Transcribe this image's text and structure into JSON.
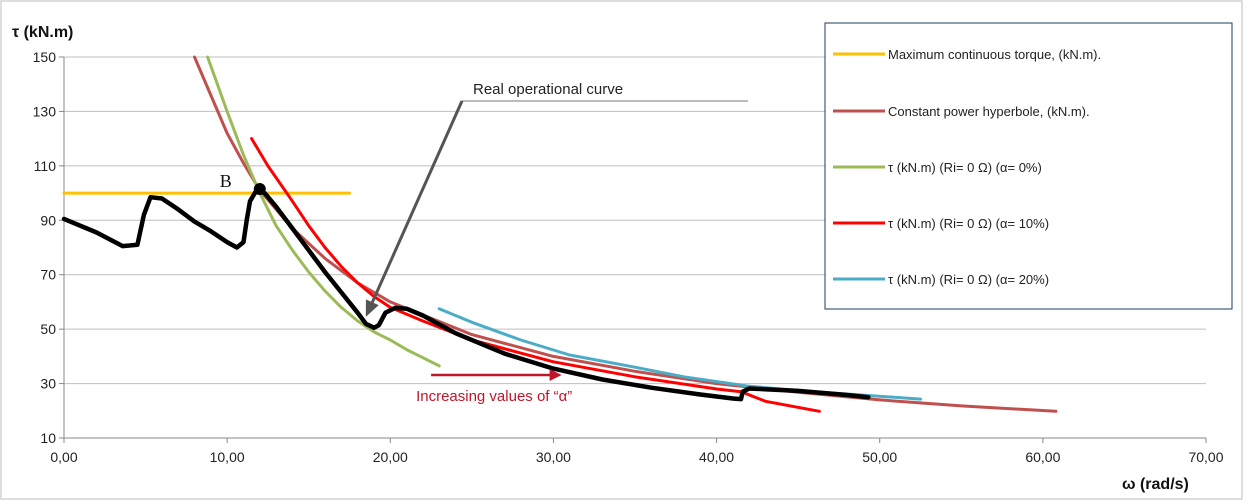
{
  "chart_data": {
    "type": "line",
    "ylabel": "τ (kN.m)",
    "xlabel": "ω (rad/s)",
    "xlim": [
      0,
      70
    ],
    "ylim": [
      10,
      150
    ],
    "x_ticks": [
      "0,00",
      "10,00",
      "20,00",
      "30,00",
      "40,00",
      "50,00",
      "60,00",
      "70,00"
    ],
    "y_ticks": [
      "10",
      "30",
      "50",
      "70",
      "90",
      "110",
      "130",
      "150"
    ],
    "grid": "horizontal",
    "legend_position": "right",
    "series": [
      {
        "name": "Maximum continuous torque, (kN.m).",
        "color": "#ffc000",
        "points": [
          [
            0,
            100
          ],
          [
            17.5,
            100
          ]
        ]
      },
      {
        "name": "Constant power hyperbole, (kN.m).",
        "color": "#c0504d",
        "points": [
          [
            8.0,
            150
          ],
          [
            9,
            136
          ],
          [
            10,
            122
          ],
          [
            11,
            111
          ],
          [
            12,
            101
          ],
          [
            14,
            87
          ],
          [
            16,
            76
          ],
          [
            18,
            67
          ],
          [
            20,
            60
          ],
          [
            25,
            48
          ],
          [
            30,
            40
          ],
          [
            35,
            34.5
          ],
          [
            40,
            30
          ],
          [
            45,
            26.8
          ],
          [
            50,
            24
          ],
          [
            55,
            21.8
          ],
          [
            60.8,
            19.8
          ]
        ]
      },
      {
        "name": "τ (kN.m)  (Ri=  0 Ω)  (α= 0%)",
        "color": "#9bbb59",
        "points": [
          [
            8.8,
            150
          ],
          [
            10,
            130
          ],
          [
            11,
            114
          ],
          [
            12,
            100
          ],
          [
            13,
            88
          ],
          [
            14,
            79
          ],
          [
            15,
            71
          ],
          [
            16,
            64
          ],
          [
            17,
            58
          ],
          [
            18,
            53
          ],
          [
            19,
            49
          ],
          [
            20,
            46
          ],
          [
            21,
            42.5
          ],
          [
            22,
            39.5
          ],
          [
            23,
            36.5
          ]
        ]
      },
      {
        "name": "τ (kN.m)  (Ri=  0 Ω) (α= 10%)",
        "color": "#ff0000",
        "points": [
          [
            11.5,
            120
          ],
          [
            12.5,
            110
          ],
          [
            14,
            97
          ],
          [
            15,
            88
          ],
          [
            16,
            80
          ],
          [
            17,
            73
          ],
          [
            18,
            67
          ],
          [
            19,
            62
          ],
          [
            20,
            58
          ],
          [
            22,
            53
          ],
          [
            25,
            46
          ],
          [
            30,
            38
          ],
          [
            35,
            32.5
          ],
          [
            40,
            28
          ],
          [
            41.5,
            27
          ],
          [
            43,
            23.5
          ],
          [
            46.3,
            19.8
          ]
        ]
      },
      {
        "name": "τ (kN.m)  (Ri=  0 Ω) (α= 20%)",
        "color": "#4bacc6",
        "points": [
          [
            23,
            57.5
          ],
          [
            25,
            52.5
          ],
          [
            28,
            46
          ],
          [
            31,
            40.5
          ],
          [
            35,
            36
          ],
          [
            38,
            32.5
          ],
          [
            42,
            29
          ],
          [
            46,
            27
          ],
          [
            52.5,
            24.3
          ]
        ]
      },
      {
        "name": "Real operational curve",
        "color": "#000000",
        "points": [
          [
            0,
            90.5
          ],
          [
            2,
            85.5
          ],
          [
            3.6,
            80.5
          ],
          [
            4.5,
            81
          ],
          [
            4.9,
            92
          ],
          [
            5.3,
            98.5
          ],
          [
            6,
            98
          ],
          [
            7,
            94
          ],
          [
            8,
            89.5
          ],
          [
            9,
            86
          ],
          [
            10,
            82
          ],
          [
            10.6,
            80
          ],
          [
            11.0,
            82
          ],
          [
            11.2,
            90
          ],
          [
            11.4,
            97
          ],
          [
            11.8,
            101
          ],
          [
            12.3,
            100
          ],
          [
            13,
            95
          ],
          [
            14,
            87
          ],
          [
            15,
            79
          ],
          [
            16,
            71
          ],
          [
            17,
            63.5
          ],
          [
            18,
            56
          ],
          [
            18.5,
            52
          ],
          [
            19.0,
            50.5
          ],
          [
            19.3,
            51.5
          ],
          [
            19.7,
            56
          ],
          [
            20.3,
            57.8
          ],
          [
            21,
            57.5
          ],
          [
            22,
            55
          ],
          [
            24,
            48.5
          ],
          [
            27,
            41
          ],
          [
            30,
            35.5
          ],
          [
            33,
            31.5
          ],
          [
            36,
            28.5
          ],
          [
            39,
            26
          ],
          [
            41,
            24.5
          ],
          [
            41.5,
            24.3
          ],
          [
            41.6,
            27
          ],
          [
            42,
            28.2
          ],
          [
            45,
            27.3
          ],
          [
            48,
            25.8
          ],
          [
            49.3,
            25
          ]
        ]
      }
    ],
    "highlight_point": {
      "label": "B",
      "x": 12.0,
      "y": 101.5
    },
    "annotations": [
      {
        "text": "Real operational curve",
        "x": 18.5,
        "y": 54.5
      },
      {
        "text": "Increasing values of “α”",
        "x": 22.5,
        "y": 22.5,
        "arrow_to_x": 30.5
      }
    ]
  }
}
